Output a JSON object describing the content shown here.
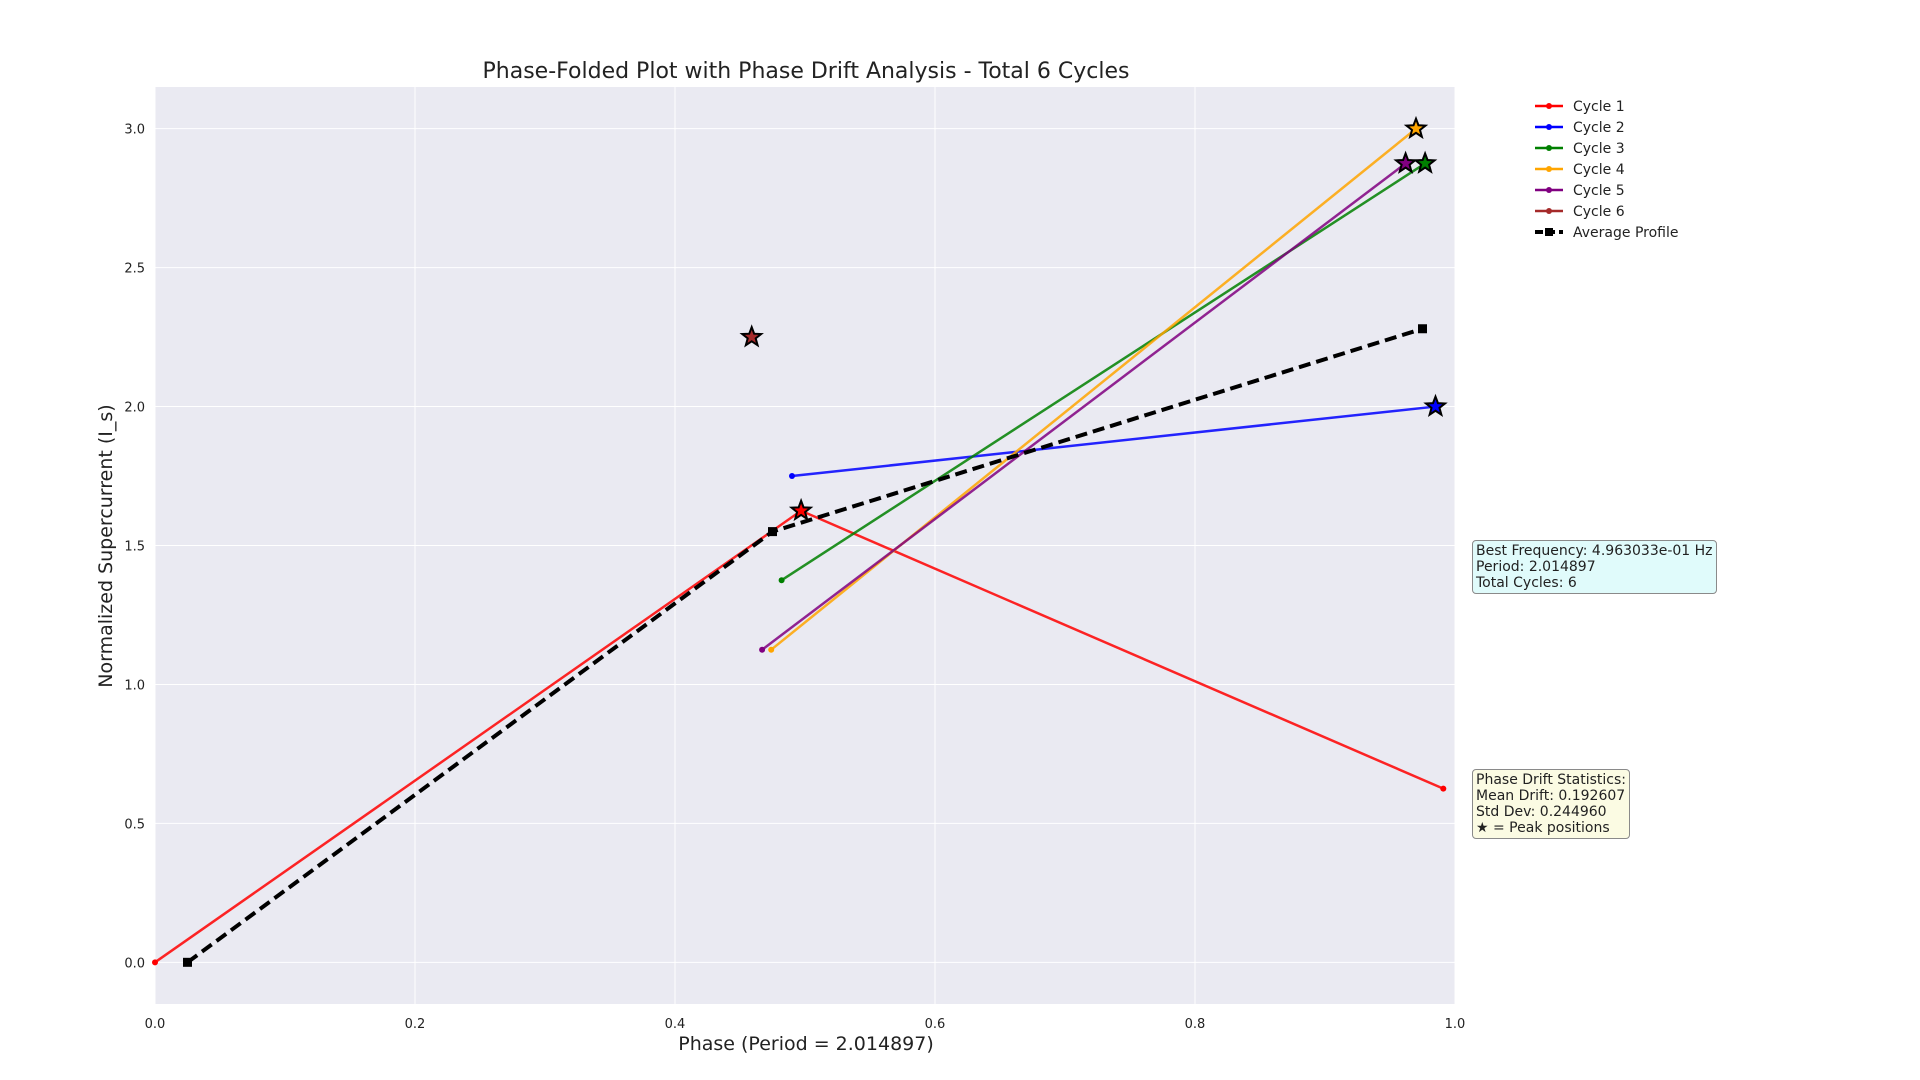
{
  "chart_data": {
    "type": "line",
    "title": "Phase-Folded Plot with Phase Drift Analysis - Total 6 Cycles",
    "xlabel": "Phase (Period = 2.014897)",
    "ylabel": "Normalized Supercurrent (I_s)",
    "xlim": [
      0.0,
      1.0
    ],
    "ylim": [
      -0.15,
      3.15
    ],
    "xticks": [
      "0.0",
      "0.2",
      "0.4",
      "0.6",
      "0.8",
      "1.0"
    ],
    "yticks": [
      "0.0",
      "0.5",
      "1.0",
      "1.5",
      "2.0",
      "2.5",
      "3.0"
    ],
    "grid": true,
    "legend_position": "outside-right-top",
    "series": [
      {
        "name": "Cycle 1",
        "color": "#ff0000",
        "x": [
          0.0,
          0.497,
          0.991
        ],
        "y": [
          0.0,
          1.625,
          0.625
        ]
      },
      {
        "name": "Cycle 2",
        "color": "#0000ff",
        "x": [
          0.49,
          0.985
        ],
        "y": [
          1.75,
          2.0
        ]
      },
      {
        "name": "Cycle 3",
        "color": "#008000",
        "x": [
          0.482,
          0.977
        ],
        "y": [
          1.375,
          2.875
        ]
      },
      {
        "name": "Cycle 4",
        "color": "#ffa500",
        "x": [
          0.474,
          0.97
        ],
        "y": [
          1.125,
          3.0
        ]
      },
      {
        "name": "Cycle 5",
        "color": "#800080",
        "x": [
          0.467,
          0.962
        ],
        "y": [
          1.125,
          2.875
        ]
      },
      {
        "name": "Cycle 6",
        "color": "#a52a2a",
        "x": [],
        "y": []
      }
    ],
    "average_profile": {
      "name": "Average Profile",
      "color": "#000000",
      "x": [
        0.025,
        0.475,
        0.975
      ],
      "y": [
        0.0,
        1.55,
        2.28
      ]
    },
    "peaks": [
      {
        "x": 0.497,
        "y": 1.625,
        "color": "#ff0000"
      },
      {
        "x": 0.985,
        "y": 2.0,
        "color": "#0000ff"
      },
      {
        "x": 0.977,
        "y": 2.875,
        "color": "#008000"
      },
      {
        "x": 0.97,
        "y": 3.0,
        "color": "#ffa500"
      },
      {
        "x": 0.962,
        "y": 2.875,
        "color": "#800080"
      },
      {
        "x": 0.459,
        "y": 2.25,
        "color": "#a52a2a"
      }
    ],
    "annotations": {
      "frequency_box": [
        "Best Frequency: 4.963033e-01 Hz",
        "Period: 2.014897",
        "Total Cycles: 6"
      ],
      "stats_box": [
        "Phase Drift Statistics:",
        "Mean Drift: 0.192607",
        "Std Dev: 0.244960",
        "★ = Peak positions"
      ]
    }
  },
  "colors": {
    "plot_background": "#eaeaf2",
    "grid": "#ffffff"
  }
}
